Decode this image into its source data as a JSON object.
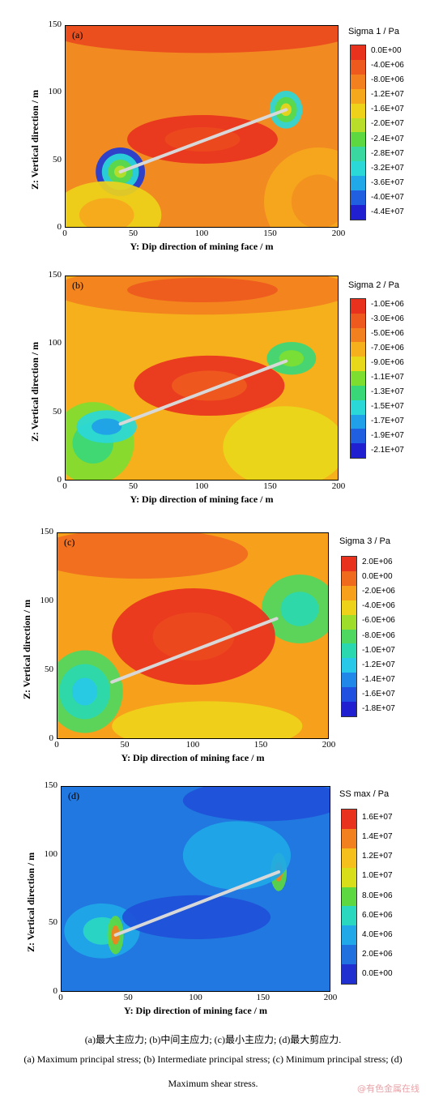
{
  "chart_data": [
    {
      "type": "heatmap",
      "panel_tag": "(a)",
      "xlabel": "Y: Dip direction of mining face / m",
      "ylabel": "Z: Vertical direction / m",
      "xlim": [
        0,
        200
      ],
      "ylim": [
        0,
        150
      ],
      "xticks": [
        "0",
        "50",
        "100",
        "150",
        "200"
      ],
      "yticks": [
        "0",
        "50",
        "100",
        "150"
      ],
      "colorbar_title": "Sigma 1 / Pa",
      "colorbar_levels": [
        "0.0E+00",
        "-4.0E+06",
        "-8.0E+06",
        "-1.2E+07",
        "-1.6E+07",
        "-2.0E+07",
        "-2.4E+07",
        "-2.8E+07",
        "-3.2E+07",
        "-3.6E+07",
        "-4.0E+07",
        "-4.4E+07"
      ],
      "colorbar_colors": [
        "#e8321e",
        "#ee5a1e",
        "#f2801e",
        "#f6a81c",
        "#eed21a",
        "#b8de2a",
        "#5ed840",
        "#38d8a0",
        "#2ad8d8",
        "#20a8e8",
        "#2060e0",
        "#2020d0"
      ],
      "background": "#f28a22",
      "blobs": [
        {
          "x": 40,
          "y": 42,
          "rx": 18,
          "ry": 18,
          "colors": [
            "#1e3ad8",
            "#2ad8d8",
            "#5ed840",
            "#b8de2a"
          ]
        },
        {
          "x": 161,
          "y": 88,
          "rx": 12,
          "ry": 14,
          "colors": [
            "#2ad8d8",
            "#5ed840",
            "#eed21a"
          ]
        },
        {
          "x": 100,
          "y": 66,
          "rx": 55,
          "ry": 18,
          "colors": [
            "#e8321e",
            "#ec4a1e"
          ]
        },
        {
          "x": 100,
          "y": 145,
          "rx": 110,
          "ry": 15,
          "colors": [
            "#ec4a1e"
          ]
        },
        {
          "x": 30,
          "y": 10,
          "rx": 40,
          "ry": 25,
          "colors": [
            "#eed21a",
            "#f6a81c"
          ]
        },
        {
          "x": 185,
          "y": 20,
          "rx": 40,
          "ry": 40,
          "colors": [
            "#f6a81c",
            "#f2901e"
          ]
        }
      ],
      "face": {
        "x1": 40,
        "y1": 42,
        "x2": 161,
        "y2": 88
      }
    },
    {
      "type": "heatmap",
      "panel_tag": "(b)",
      "xlabel": "Y: Dip direction of mining face / m",
      "ylabel": "Z: Vertical direction / m",
      "xlim": [
        0,
        200
      ],
      "ylim": [
        0,
        150
      ],
      "xticks": [
        "0",
        "50",
        "100",
        "150",
        "200"
      ],
      "yticks": [
        "0",
        "50",
        "100",
        "150"
      ],
      "colorbar_title": "Sigma 2 / Pa",
      "colorbar_levels": [
        "-1.0E+06",
        "-3.0E+06",
        "-5.0E+06",
        "-7.0E+06",
        "-9.0E+06",
        "-1.1E+07",
        "-1.3E+07",
        "-1.5E+07",
        "-1.7E+07",
        "-1.9E+07",
        "-2.1E+07"
      ],
      "colorbar_colors": [
        "#e8321e",
        "#ee5a1e",
        "#f2801e",
        "#f6b01c",
        "#e8d81a",
        "#7ede30",
        "#38d878",
        "#2ad8d8",
        "#20a0e8",
        "#2060e0",
        "#2020d0"
      ],
      "background": "#f6b01c",
      "blobs": [
        {
          "x": 20,
          "y": 28,
          "rx": 30,
          "ry": 30,
          "colors": [
            "#7ede30",
            "#38d878"
          ]
        },
        {
          "x": 30,
          "y": 40,
          "rx": 22,
          "ry": 12,
          "colors": [
            "#2ad8d8",
            "#20a0e8"
          ]
        },
        {
          "x": 165,
          "y": 90,
          "rx": 18,
          "ry": 12,
          "colors": [
            "#38d878",
            "#7ede30"
          ]
        },
        {
          "x": 105,
          "y": 70,
          "rx": 55,
          "ry": 22,
          "colors": [
            "#e8321e",
            "#ee5a1e"
          ]
        },
        {
          "x": 100,
          "y": 140,
          "rx": 110,
          "ry": 18,
          "colors": [
            "#f2801e",
            "#ee5a1e"
          ]
        },
        {
          "x": 160,
          "y": 25,
          "rx": 45,
          "ry": 30,
          "colors": [
            "#e8d81a"
          ]
        }
      ],
      "face": {
        "x1": 40,
        "y1": 42,
        "x2": 161,
        "y2": 88
      }
    },
    {
      "type": "heatmap",
      "panel_tag": "(c)",
      "xlabel": "Y: Dip direction of mining face / m",
      "ylabel": "Z: Vertical direction / m",
      "xlim": [
        0,
        200
      ],
      "ylim": [
        0,
        150
      ],
      "xticks": [
        "0",
        "50",
        "100",
        "150",
        "200"
      ],
      "yticks": [
        "0",
        "50",
        "100",
        "150"
      ],
      "colorbar_title": "Sigma 3 / Pa",
      "colorbar_levels": [
        "2.0E+06",
        "0.0E+00",
        "-2.0E+06",
        "-4.0E+06",
        "-6.0E+06",
        "-8.0E+06",
        "-1.0E+07",
        "-1.2E+07",
        "-1.4E+07",
        "-1.6E+07",
        "-1.8E+07"
      ],
      "colorbar_colors": [
        "#e8321e",
        "#f06a1e",
        "#f6a01c",
        "#eed21a",
        "#9ede2a",
        "#4ed860",
        "#2ad8b0",
        "#28c8e8",
        "#2088e8",
        "#2050e0",
        "#2020d0"
      ],
      "background": "#f6a01c",
      "blobs": [
        {
          "x": 20,
          "y": 35,
          "rx": 28,
          "ry": 30,
          "colors": [
            "#4ed860",
            "#2ad8b0",
            "#28c8e8"
          ]
        },
        {
          "x": 178,
          "y": 95,
          "rx": 28,
          "ry": 25,
          "colors": [
            "#4ed860",
            "#2ad8b0"
          ]
        },
        {
          "x": 100,
          "y": 75,
          "rx": 60,
          "ry": 35,
          "colors": [
            "#e8321e",
            "#ec4a1e"
          ]
        },
        {
          "x": 110,
          "y": 10,
          "rx": 70,
          "ry": 18,
          "colors": [
            "#eed21a"
          ]
        },
        {
          "x": 60,
          "y": 135,
          "rx": 80,
          "ry": 18,
          "colors": [
            "#f06a1e"
          ]
        }
      ],
      "face": {
        "x1": 40,
        "y1": 42,
        "x2": 161,
        "y2": 88
      }
    },
    {
      "type": "heatmap",
      "panel_tag": "(d)",
      "xlabel": "Y: Dip direction of mining face / m",
      "ylabel": "Z: Vertical direction / m",
      "xlim": [
        0,
        200
      ],
      "ylim": [
        0,
        150
      ],
      "xticks": [
        "0",
        "50",
        "100",
        "150",
        "200"
      ],
      "yticks": [
        "0",
        "50",
        "100",
        "150"
      ],
      "colorbar_title": "SS max / Pa",
      "colorbar_levels": [
        "1.6E+07",
        "1.4E+07",
        "1.2E+07",
        "1.0E+07",
        "8.0E+06",
        "6.0E+06",
        "4.0E+06",
        "2.0E+06",
        "0.0E+00"
      ],
      "colorbar_colors": [
        "#e8321e",
        "#f2801e",
        "#f6c01c",
        "#d8de1a",
        "#5ed840",
        "#2ad8c0",
        "#20a8e8",
        "#2070e0",
        "#2030d0"
      ],
      "background": "#2078e0",
      "blobs": [
        {
          "x": 30,
          "y": 45,
          "rx": 28,
          "ry": 20,
          "colors": [
            "#20a8e8",
            "#2ad8c0"
          ]
        },
        {
          "x": 40,
          "y": 42,
          "rx": 6,
          "ry": 14,
          "colors": [
            "#5ed840",
            "#f2801e"
          ]
        },
        {
          "x": 161,
          "y": 88,
          "rx": 6,
          "ry": 14,
          "colors": [
            "#5ed840",
            "#f2801e"
          ]
        },
        {
          "x": 130,
          "y": 100,
          "rx": 40,
          "ry": 25,
          "colors": [
            "#20a8e8"
          ]
        },
        {
          "x": 100,
          "y": 55,
          "rx": 55,
          "ry": 16,
          "colors": [
            "#2050d8"
          ]
        },
        {
          "x": 150,
          "y": 140,
          "rx": 60,
          "ry": 15,
          "colors": [
            "#2050d8"
          ]
        }
      ],
      "face": {
        "x1": 40,
        "y1": 42,
        "x2": 161,
        "y2": 88
      }
    }
  ],
  "caption": {
    "line1": "(a)最大主应力; (b)中间主应力; (c)最小主应力; (d)最大剪应力.",
    "line2": "(a) Maximum principal stress; (b) Intermediate principal stress; (c) Minimum principal stress; (d)",
    "line3": "Maximum shear stress."
  },
  "watermark": "@有色金属在线"
}
